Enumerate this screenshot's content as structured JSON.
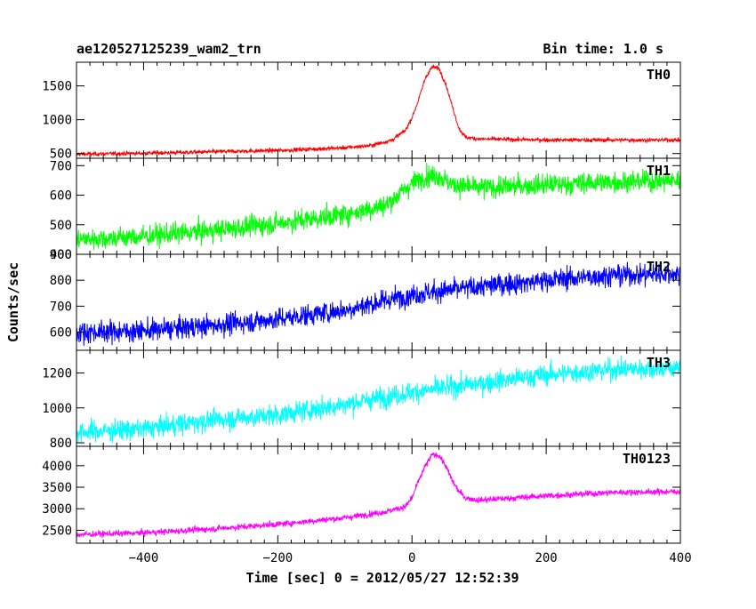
{
  "chart_data": {
    "type": "line",
    "title": "ae120527125239_wam2_trn",
    "bin_time_label": "Bin time: 1.0 s",
    "xlabel": "Time [sec] 0 = 2012/05/27 12:52:39",
    "ylabel": "Counts/sec",
    "xlim": [
      -500,
      400
    ],
    "x_ticks": [
      -400,
      -200,
      0,
      200,
      400
    ],
    "x_tick_labels": [
      "−400",
      "−200",
      "0",
      "200",
      "400"
    ],
    "panels": [
      {
        "name": "TH0",
        "color": "#ff0000",
        "ylim": [
          430,
          1850
        ],
        "y_ticks": [
          500,
          1000,
          1500
        ],
        "y_tick_labels": [
          "500",
          "1000",
          "1500"
        ],
        "data": {
          "x": [
            -500,
            -400,
            -300,
            -200,
            -100,
            -60,
            -30,
            -10,
            0,
            10,
            20,
            30,
            40,
            50,
            60,
            70,
            80,
            100,
            200,
            300,
            400
          ],
          "y": [
            490,
            505,
            525,
            545,
            585,
            620,
            700,
            840,
            1030,
            1300,
            1620,
            1780,
            1760,
            1540,
            1200,
            870,
            740,
            715,
            700,
            700,
            700
          ]
        },
        "noise": 25
      },
      {
        "name": "TH1",
        "color": "#00ff00",
        "ylim": [
          400,
          725
        ],
        "y_ticks": [
          400,
          500,
          600,
          700
        ],
        "y_tick_labels": [
          "400",
          "500",
          "600",
          "700"
        ],
        "data": {
          "x": [
            -500,
            -400,
            -300,
            -200,
            -100,
            -40,
            0,
            20,
            40,
            60,
            100,
            200,
            300,
            400
          ],
          "y": [
            450,
            460,
            480,
            505,
            535,
            565,
            640,
            665,
            665,
            635,
            625,
            635,
            645,
            650
          ]
        },
        "noise": 30
      },
      {
        "name": "TH2",
        "color": "#0000ff",
        "ylim": [
          530,
          900
        ],
        "y_ticks": [
          600,
          700,
          800,
          900
        ],
        "y_tick_labels": [
          "600",
          "700",
          "800",
          "900"
        ],
        "data": {
          "x": [
            -500,
            -400,
            -300,
            -200,
            -100,
            0,
            100,
            200,
            300,
            400
          ],
          "y": [
            600,
            605,
            625,
            650,
            685,
            745,
            775,
            800,
            820,
            825
          ]
        },
        "noise": 35
      },
      {
        "name": "TH3",
        "color": "#00ffff",
        "ylim": [
          780,
          1330
        ],
        "y_ticks": [
          800,
          1000,
          1200
        ],
        "y_tick_labels": [
          "800",
          "1000",
          "1200"
        ],
        "data": {
          "x": [
            -500,
            -400,
            -300,
            -200,
            -100,
            0,
            100,
            200,
            300,
            400
          ],
          "y": [
            860,
            880,
            930,
            960,
            1020,
            1090,
            1140,
            1190,
            1220,
            1230
          ]
        },
        "noise": 50
      },
      {
        "name": "TH0123",
        "color": "#ff00ff",
        "ylim": [
          2200,
          4450
        ],
        "y_ticks": [
          2500,
          3000,
          3500,
          4000
        ],
        "y_tick_labels": [
          "2500",
          "3000",
          "3500",
          "4000"
        ],
        "data": {
          "x": [
            -500,
            -400,
            -300,
            -200,
            -100,
            -40,
            -10,
            0,
            10,
            20,
            30,
            40,
            50,
            60,
            70,
            80,
            100,
            200,
            300,
            400
          ],
          "y": [
            2400,
            2440,
            2530,
            2640,
            2790,
            2930,
            3050,
            3250,
            3650,
            4000,
            4250,
            4250,
            4000,
            3650,
            3400,
            3250,
            3200,
            3300,
            3380,
            3400
          ]
        },
        "noise": 60
      }
    ],
    "grid": false,
    "legend": "panel-labels-top-right"
  }
}
